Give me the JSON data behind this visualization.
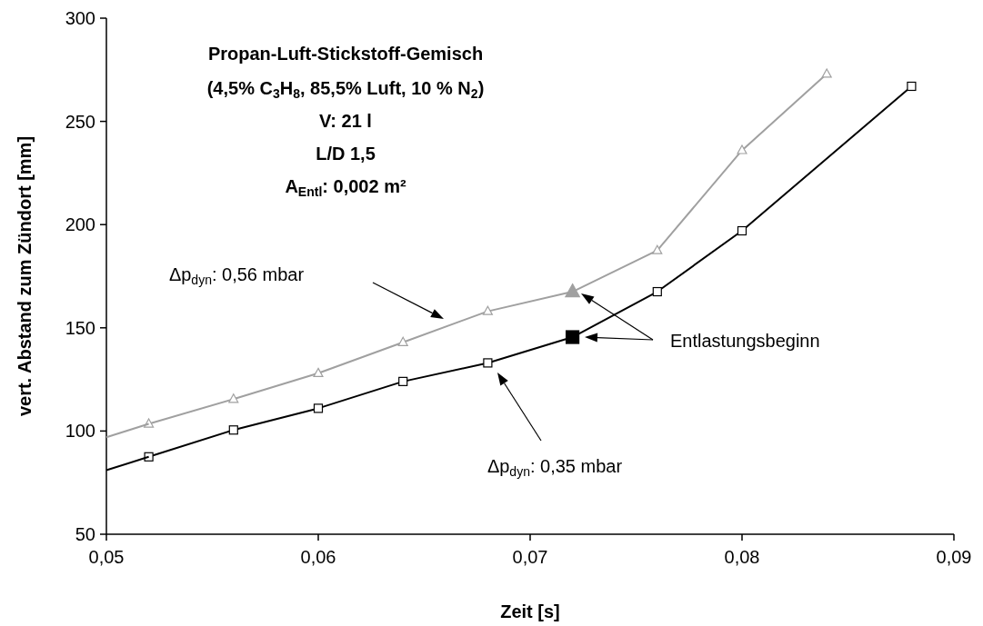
{
  "chart_data": {
    "type": "line",
    "title": "Propan-Luft-Stickstoff-Gemisch",
    "subtitle": "(4,5% C$_{3}$H$_{8}$, 85,5% Luft, 10 % N$_{2}$)\nV: 21 l\nL/D 1,5\nA$_{Entl}$: 0,002 m²",
    "xlabel": "Zeit [s]",
    "ylabel": "vert. Abstand zum Zündort [mm]",
    "xlim": [
      0.05,
      0.09
    ],
    "xticks": [
      {
        "value": 0.05,
        "label": "0,05"
      },
      {
        "value": 0.06,
        "label": "0,06"
      },
      {
        "value": 0.07,
        "label": "0,07"
      },
      {
        "value": 0.08,
        "label": "0,08"
      },
      {
        "value": 0.09,
        "label": "0,09"
      }
    ],
    "ylim": [
      50,
      300
    ],
    "yticks": [
      50,
      100,
      150,
      200,
      250,
      300
    ],
    "grid": false,
    "line_style": "solid",
    "series": [
      {
        "color": "#a0a0a0",
        "marker": "triangle",
        "x": [
          0.052,
          0.056,
          0.06,
          0.064,
          0.068,
          0.072,
          0.076,
          0.08,
          0.084
        ],
        "values": [
          103.5,
          115.5,
          128,
          143,
          158,
          167.5,
          187.5,
          236,
          273
        ]
      },
      {
        "color": "#000000",
        "marker": "square",
        "x": [
          0.052,
          0.056,
          0.06,
          0.064,
          0.068,
          0.072,
          0.076,
          0.08,
          0.088
        ],
        "values": [
          87.5,
          100.5,
          111,
          124,
          133,
          145.5,
          167.5,
          197,
          267
        ]
      },
      {
        "color": "#a0a0a0",
        "marker": "none",
        "x": [
          0.05,
          0.052
        ],
        "values": [
          97,
          103.5
        ]
      },
      {
        "color": "#000000",
        "marker": "none",
        "x": [
          0.05,
          0.052
        ],
        "values": [
          81,
          87.5
        ]
      },
      {
        "type": "scatter",
        "color": "#a0a0a0",
        "marker": "triangle",
        "x": [
          0.072
        ],
        "values": [
          167.5
        ]
      },
      {
        "type": "scatter",
        "color": "#000000",
        "marker": "square",
        "x": [
          0.072
        ],
        "values": [
          145.5
        ]
      }
    ],
    "annotations": [
      "Δp$_{dyn}$: 0,56 mbar",
      "Δp$_{dyn}$: 0,35 mbar",
      "Entlastungsbeginn"
    ]
  }
}
